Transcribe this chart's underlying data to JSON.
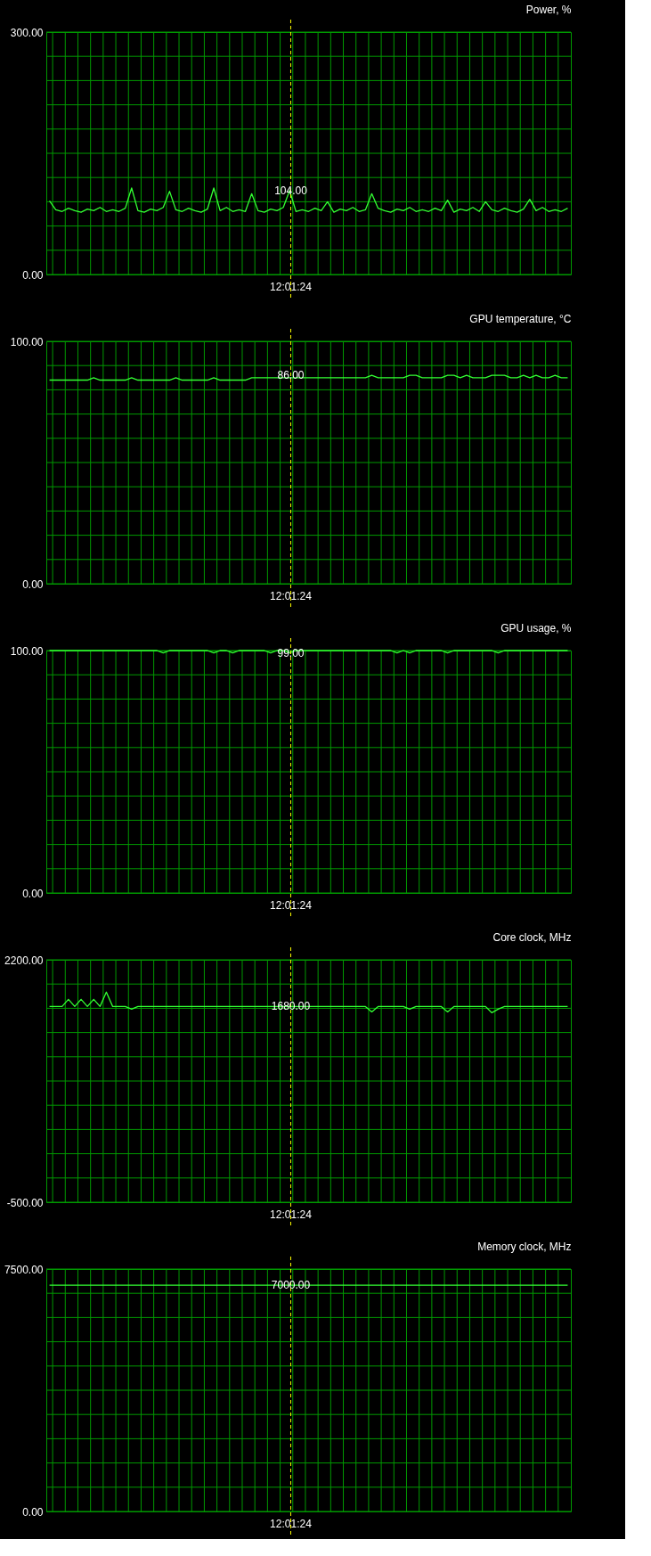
{
  "chart_data": [
    {
      "type": "line",
      "title": "Power, %",
      "categories": [
        null,
        null,
        null,
        null,
        null,
        null,
        null,
        null,
        null,
        null,
        null,
        null,
        null,
        null,
        null,
        null,
        null,
        null,
        null,
        null,
        null,
        null,
        null,
        null,
        null,
        null,
        null,
        null,
        null,
        null,
        null,
        null,
        null,
        null,
        null,
        null,
        null,
        null,
        null,
        null,
        null,
        null,
        null,
        null,
        null,
        null,
        null,
        null,
        null,
        null,
        null,
        null,
        null,
        null,
        null,
        null,
        null,
        null,
        null,
        null,
        null,
        null,
        null,
        null,
        null,
        null,
        null,
        null,
        null,
        null,
        null,
        null,
        null,
        null,
        null,
        null,
        null,
        null,
        null,
        null,
        null,
        null,
        null
      ],
      "series": [
        {
          "color": "#33ff33",
          "values": [
            91,
            80,
            78,
            82,
            79,
            77,
            81,
            79,
            83,
            78,
            80,
            78,
            82,
            107,
            79,
            77,
            81,
            79,
            83,
            103,
            80,
            78,
            82,
            79,
            77,
            81,
            107,
            79,
            83,
            78,
            80,
            78,
            100,
            79,
            77,
            81,
            79,
            83,
            104,
            78,
            80,
            78,
            82,
            79,
            90,
            77,
            81,
            79,
            83,
            78,
            80,
            100,
            82,
            79,
            77,
            81,
            79,
            83,
            78,
            80,
            78,
            82,
            79,
            92,
            77,
            81,
            79,
            83,
            78,
            90,
            80,
            78,
            82,
            79,
            77,
            81,
            93,
            79,
            83,
            78,
            80,
            78,
            82
          ]
        }
      ],
      "ylim": [
        0,
        300
      ],
      "yticks": [
        {
          "value": 0,
          "label": "0.00"
        },
        {
          "value": 30,
          "label": null
        },
        {
          "value": 60,
          "label": null
        },
        {
          "value": 90,
          "label": null
        },
        {
          "value": 120,
          "label": null
        },
        {
          "value": 150,
          "label": null
        },
        {
          "value": 180,
          "label": null
        },
        {
          "value": 210,
          "label": null
        },
        {
          "value": 240,
          "label": null
        },
        {
          "value": 270,
          "label": null
        },
        {
          "value": 300,
          "label": "300.00"
        }
      ],
      "grid": true,
      "tick_labels": "y",
      "annotations": [
        "12:01:24",
        {
          "text": "104.00",
          "y": 104
        }
      ]
    },
    {
      "type": "line",
      "title": "GPU temperature, °C",
      "categories": [
        null,
        null,
        null,
        null,
        null,
        null,
        null,
        null,
        null,
        null,
        null,
        null,
        null,
        null,
        null,
        null,
        null,
        null,
        null,
        null,
        null,
        null,
        null,
        null,
        null,
        null,
        null,
        null,
        null,
        null,
        null,
        null,
        null,
        null,
        null,
        null,
        null,
        null,
        null,
        null,
        null,
        null,
        null,
        null,
        null,
        null,
        null,
        null,
        null,
        null,
        null,
        null,
        null,
        null,
        null,
        null,
        null,
        null,
        null,
        null,
        null,
        null,
        null,
        null,
        null,
        null,
        null,
        null,
        null,
        null,
        null,
        null,
        null,
        null,
        null,
        null,
        null,
        null,
        null,
        null,
        null,
        null,
        null
      ],
      "series": [
        {
          "color": "#33ff33",
          "values": [
            84,
            84,
            84,
            84,
            84,
            84,
            84,
            85,
            84,
            84,
            84,
            84,
            84,
            85,
            84,
            84,
            84,
            84,
            84,
            84,
            85,
            84,
            84,
            84,
            84,
            84,
            85,
            84,
            84,
            84,
            84,
            84,
            85,
            85,
            85,
            85,
            85,
            85,
            85,
            85,
            85,
            85,
            85,
            85,
            85,
            85,
            85,
            85,
            85,
            85,
            85,
            86,
            85,
            85,
            85,
            85,
            85,
            86,
            86,
            85,
            85,
            85,
            85,
            86,
            86,
            85,
            86,
            85,
            85,
            85,
            86,
            86,
            86,
            85,
            85,
            86,
            85,
            86,
            85,
            85,
            86,
            85,
            85
          ]
        }
      ],
      "ylim": [
        0,
        100
      ],
      "yticks": [
        {
          "value": 0,
          "label": "0.00"
        },
        {
          "value": 10,
          "label": null
        },
        {
          "value": 20,
          "label": null
        },
        {
          "value": 30,
          "label": null
        },
        {
          "value": 40,
          "label": null
        },
        {
          "value": 50,
          "label": null
        },
        {
          "value": 60,
          "label": null
        },
        {
          "value": 70,
          "label": null
        },
        {
          "value": 80,
          "label": null
        },
        {
          "value": 90,
          "label": null
        },
        {
          "value": 100,
          "label": "100.00"
        }
      ],
      "grid": true,
      "tick_labels": "y",
      "annotations": [
        "12:01:24",
        {
          "text": "86.00",
          "y": 86
        }
      ]
    },
    {
      "type": "line",
      "title": "GPU usage, %",
      "categories": [
        null,
        null,
        null,
        null,
        null,
        null,
        null,
        null,
        null,
        null,
        null,
        null,
        null,
        null,
        null,
        null,
        null,
        null,
        null,
        null,
        null,
        null,
        null,
        null,
        null,
        null,
        null,
        null,
        null,
        null,
        null,
        null,
        null,
        null,
        null,
        null,
        null,
        null,
        null,
        null,
        null,
        null,
        null,
        null,
        null,
        null,
        null,
        null,
        null,
        null,
        null,
        null,
        null,
        null,
        null,
        null,
        null,
        null,
        null,
        null,
        null,
        null,
        null,
        null,
        null,
        null,
        null,
        null,
        null,
        null,
        null,
        null,
        null,
        null,
        null,
        null,
        null,
        null,
        null,
        null,
        null,
        null,
        null
      ],
      "series": [
        {
          "color": "#33ff33",
          "values": [
            100,
            100,
            100,
            100,
            100,
            100,
            100,
            100,
            100,
            100,
            100,
            100,
            100,
            100,
            100,
            100,
            100,
            100,
            99,
            100,
            100,
            100,
            100,
            100,
            100,
            100,
            99,
            100,
            100,
            99,
            100,
            100,
            100,
            100,
            100,
            99,
            100,
            100,
            99,
            100,
            100,
            100,
            100,
            100,
            100,
            100,
            100,
            100,
            100,
            100,
            100,
            100,
            100,
            100,
            100,
            99,
            100,
            99,
            100,
            100,
            100,
            100,
            100,
            99,
            100,
            100,
            100,
            100,
            100,
            100,
            100,
            99,
            100,
            100,
            100,
            100,
            100,
            100,
            100,
            100,
            100,
            100,
            100
          ]
        }
      ],
      "ylim": [
        0,
        100
      ],
      "yticks": [
        {
          "value": 0,
          "label": "0.00"
        },
        {
          "value": 10,
          "label": null
        },
        {
          "value": 20,
          "label": null
        },
        {
          "value": 30,
          "label": null
        },
        {
          "value": 40,
          "label": null
        },
        {
          "value": 50,
          "label": null
        },
        {
          "value": 60,
          "label": null
        },
        {
          "value": 70,
          "label": null
        },
        {
          "value": 80,
          "label": null
        },
        {
          "value": 90,
          "label": null
        },
        {
          "value": 100,
          "label": "100.00"
        }
      ],
      "grid": true,
      "tick_labels": "y",
      "annotations": [
        "12:01:24",
        {
          "text": "99.00",
          "y": 99
        }
      ]
    },
    {
      "type": "line",
      "title": "Core clock, MHz",
      "categories": [
        null,
        null,
        null,
        null,
        null,
        null,
        null,
        null,
        null,
        null,
        null,
        null,
        null,
        null,
        null,
        null,
        null,
        null,
        null,
        null,
        null,
        null,
        null,
        null,
        null,
        null,
        null,
        null,
        null,
        null,
        null,
        null,
        null,
        null,
        null,
        null,
        null,
        null,
        null,
        null,
        null,
        null,
        null,
        null,
        null,
        null,
        null,
        null,
        null,
        null,
        null,
        null,
        null,
        null,
        null,
        null,
        null,
        null,
        null,
        null,
        null,
        null,
        null,
        null,
        null,
        null,
        null,
        null,
        null,
        null,
        null,
        null,
        null,
        null,
        null,
        null,
        null,
        null,
        null,
        null,
        null,
        null,
        null
      ],
      "series": [
        {
          "color": "#33ff33",
          "values": [
            1680,
            1680,
            1680,
            1760,
            1680,
            1760,
            1680,
            1760,
            1680,
            1840,
            1680,
            1680,
            1680,
            1650,
            1680,
            1680,
            1680,
            1680,
            1680,
            1680,
            1680,
            1680,
            1680,
            1680,
            1680,
            1680,
            1680,
            1680,
            1680,
            1680,
            1680,
            1680,
            1680,
            1680,
            1680,
            1680,
            1680,
            1680,
            1680,
            1680,
            1680,
            1680,
            1680,
            1680,
            1680,
            1680,
            1680,
            1680,
            1680,
            1680,
            1680,
            1620,
            1680,
            1680,
            1680,
            1680,
            1680,
            1650,
            1680,
            1680,
            1680,
            1680,
            1680,
            1620,
            1680,
            1680,
            1680,
            1680,
            1680,
            1680,
            1610,
            1650,
            1680,
            1680,
            1680,
            1680,
            1680,
            1680,
            1680,
            1680,
            1680,
            1680,
            1680
          ]
        }
      ],
      "ylim": [
        -500,
        2200
      ],
      "yticks": [
        {
          "value": -500,
          "label": "-500.00"
        },
        {
          "value": -230,
          "label": null
        },
        {
          "value": 40,
          "label": null
        },
        {
          "value": 310,
          "label": null
        },
        {
          "value": 580,
          "label": null
        },
        {
          "value": 850,
          "label": null
        },
        {
          "value": 1120,
          "label": null
        },
        {
          "value": 1390,
          "label": null
        },
        {
          "value": 1660,
          "label": null
        },
        {
          "value": 1930,
          "label": null
        },
        {
          "value": 2200,
          "label": "2200.00"
        }
      ],
      "grid": true,
      "tick_labels": "y",
      "annotations": [
        "12:01:24",
        {
          "text": "1680.00",
          "y": 1680
        }
      ]
    },
    {
      "type": "line",
      "title": "Memory clock, MHz",
      "categories": [
        null,
        null,
        null,
        null,
        null,
        null,
        null,
        null,
        null,
        null,
        null,
        null,
        null,
        null,
        null,
        null,
        null,
        null,
        null,
        null,
        null,
        null,
        null,
        null,
        null,
        null,
        null,
        null,
        null,
        null,
        null,
        null,
        null,
        null,
        null,
        null,
        null,
        null,
        null,
        null,
        null,
        null,
        null,
        null,
        null,
        null,
        null,
        null,
        null,
        null,
        null,
        null,
        null,
        null,
        null,
        null,
        null,
        null,
        null,
        null,
        null,
        null,
        null,
        null,
        null,
        null,
        null,
        null,
        null,
        null,
        null,
        null,
        null,
        null,
        null,
        null,
        null,
        null,
        null,
        null,
        null,
        null,
        null
      ],
      "series": [
        {
          "color": "#33ff33",
          "values": [
            7000,
            7000,
            7000,
            7000,
            7000,
            7000,
            7000,
            7000,
            7000,
            7000,
            7000,
            7000,
            7000,
            7000,
            7000,
            7000,
            7000,
            7000,
            7000,
            7000,
            7000,
            7000,
            7000,
            7000,
            7000,
            7000,
            7000,
            7000,
            7000,
            7000,
            7000,
            7000,
            7000,
            7000,
            7000,
            7000,
            7000,
            7000,
            7000,
            7000,
            7000,
            7000,
            7000,
            7000,
            7000,
            7000,
            7000,
            7000,
            7000,
            7000,
            7000,
            7000,
            7000,
            7000,
            7000,
            7000,
            7000,
            7000,
            7000,
            7000,
            7000,
            7000,
            7000,
            7000,
            7000,
            7000,
            7000,
            7000,
            7000,
            7000,
            7000,
            7000,
            7000,
            7000,
            7000,
            7000,
            7000,
            7000,
            7000,
            7000,
            7000,
            7000,
            7000
          ]
        }
      ],
      "ylim": [
        0,
        7500
      ],
      "yticks": [
        {
          "value": 0,
          "label": "0.00"
        },
        {
          "value": 750,
          "label": null
        },
        {
          "value": 1500,
          "label": null
        },
        {
          "value": 2250,
          "label": null
        },
        {
          "value": 3000,
          "label": null
        },
        {
          "value": 3750,
          "label": null
        },
        {
          "value": 4500,
          "label": null
        },
        {
          "value": 5250,
          "label": null
        },
        {
          "value": 6000,
          "label": null
        },
        {
          "value": 6750,
          "label": null
        },
        {
          "value": 7500,
          "label": "7500.00"
        }
      ],
      "grid": true,
      "tick_labels": "y",
      "annotations": [
        "12:01:24",
        {
          "text": "7000.00",
          "y": 7000
        }
      ]
    }
  ]
}
